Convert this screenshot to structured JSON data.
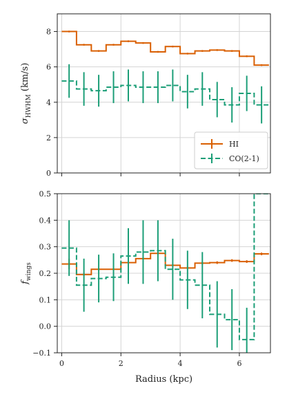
{
  "chart_data": [
    {
      "type": "line",
      "panel": "top",
      "xlabel": "",
      "ylabel": "σ_HWHM (km/s)",
      "ylabel_main": "σ",
      "ylabel_sub": "HWHM",
      "ylabel_unit": " (km/s)",
      "xlim": [
        -0.15,
        7.05
      ],
      "ylim": [
        0,
        9
      ],
      "xticks": [
        0,
        2,
        4,
        6
      ],
      "yticks": [
        0,
        2,
        4,
        6,
        8
      ],
      "ytick_labels": [
        "0",
        "2",
        "4",
        "6",
        "8"
      ],
      "grid": true,
      "legend_position": "lower-right",
      "x": [
        0.25,
        0.75,
        1.25,
        1.75,
        2.25,
        2.75,
        3.25,
        3.75,
        4.25,
        4.75,
        5.25,
        5.75,
        6.25,
        6.75
      ],
      "series": [
        {
          "name": "HI",
          "color": "#d95f02",
          "style": "solid",
          "values": [
            8.0,
            7.25,
            6.9,
            7.25,
            7.45,
            7.35,
            6.85,
            7.15,
            6.75,
            6.9,
            6.95,
            6.9,
            6.6,
            6.1
          ],
          "errors": [
            0.05,
            0.05,
            0.05,
            0.05,
            0.05,
            0.05,
            0.05,
            0.05,
            0.05,
            0.05,
            0.05,
            0.05,
            0.05,
            0.05
          ]
        },
        {
          "name": "CO(2-1)",
          "color": "#1b9e77",
          "style": "dashed",
          "values": [
            5.2,
            4.75,
            4.65,
            4.85,
            4.95,
            4.85,
            4.85,
            4.95,
            4.6,
            4.75,
            4.15,
            3.85,
            4.5,
            3.85
          ],
          "errors": [
            0.95,
            0.95,
            0.9,
            0.9,
            0.9,
            0.9,
            0.9,
            0.9,
            0.95,
            0.95,
            1.0,
            1.0,
            1.0,
            1.05
          ]
        }
      ]
    },
    {
      "type": "line",
      "panel": "bottom",
      "xlabel": "Radius (kpc)",
      "ylabel": "f_wings",
      "ylabel_main": "f",
      "ylabel_sub": "wings",
      "ylabel_unit": "",
      "xlim": [
        -0.15,
        7.05
      ],
      "ylim": [
        -0.1,
        0.5
      ],
      "xticks": [
        0,
        2,
        4,
        6
      ],
      "xtick_labels": [
        "0",
        "2",
        "4",
        "6"
      ],
      "yticks": [
        -0.1,
        0.0,
        0.1,
        0.2,
        0.3,
        0.4,
        0.5
      ],
      "ytick_labels": [
        "−0.1",
        "0.0",
        "0.1",
        "0.2",
        "0.3",
        "0.4",
        "0.5"
      ],
      "grid": true,
      "x": [
        0.25,
        0.75,
        1.25,
        1.75,
        2.25,
        2.75,
        3.25,
        3.75,
        4.25,
        4.75,
        5.25,
        5.75,
        6.25,
        6.75
      ],
      "series": [
        {
          "name": "HI",
          "color": "#d95f02",
          "style": "solid",
          "values": [
            0.235,
            0.195,
            0.215,
            0.215,
            0.24,
            0.255,
            0.275,
            0.23,
            0.22,
            0.238,
            0.24,
            0.248,
            0.244,
            0.273
          ],
          "errors": [
            0.02,
            0.005,
            0.005,
            0.005,
            0.005,
            0.005,
            0.005,
            0.005,
            0.005,
            0.005,
            0.005,
            0.005,
            0.005,
            0.005
          ]
        },
        {
          "name": "CO(2-1)",
          "color": "#1b9e77",
          "style": "dashed",
          "values": [
            0.295,
            0.155,
            0.18,
            0.185,
            0.265,
            0.28,
            0.285,
            0.215,
            0.175,
            0.155,
            0.045,
            0.025,
            -0.05,
            0.5
          ],
          "errors": [
            0.105,
            0.1,
            0.09,
            0.09,
            0.105,
            0.12,
            0.115,
            0.115,
            0.11,
            0.125,
            0.125,
            0.115,
            0.12,
            0.0
          ]
        }
      ]
    }
  ]
}
